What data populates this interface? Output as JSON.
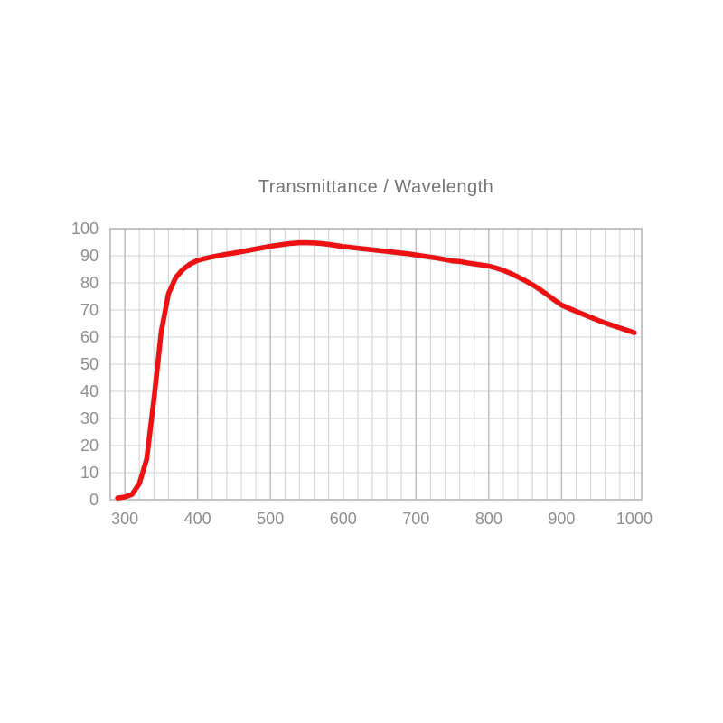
{
  "colors": {
    "background": "#ffffff",
    "line": "#ee1111",
    "line_halo": "#cdeef0",
    "grid_minor": "#d9d9d9",
    "grid_major": "#bdbdbd",
    "plot_border": "#b3b3b3",
    "tick_label": "#8f8f8f",
    "title_text": "#757575"
  },
  "chart_data": {
    "type": "line",
    "title": "Transmittance / Wavelength",
    "xlabel": "",
    "ylabel": "",
    "xlim": [
      280,
      1010
    ],
    "ylim": [
      0,
      100
    ],
    "x_ticks": [
      300,
      400,
      500,
      600,
      700,
      800,
      900,
      1000
    ],
    "y_ticks": [
      0,
      10,
      20,
      30,
      40,
      50,
      60,
      70,
      80,
      90,
      100
    ],
    "x_minor_step": 20,
    "y_major_step": 10,
    "grid": true,
    "legend": false,
    "series": [
      {
        "name": "Transmittance",
        "color": "#ee1111",
        "x": [
          290,
          300,
          310,
          320,
          330,
          340,
          350,
          360,
          370,
          380,
          390,
          400,
          410,
          420,
          430,
          440,
          450,
          460,
          470,
          480,
          490,
          500,
          510,
          520,
          530,
          540,
          550,
          560,
          570,
          580,
          590,
          600,
          610,
          620,
          630,
          640,
          650,
          660,
          670,
          680,
          690,
          700,
          710,
          720,
          730,
          740,
          750,
          760,
          770,
          780,
          790,
          800,
          810,
          820,
          830,
          840,
          850,
          860,
          870,
          880,
          890,
          900,
          910,
          920,
          930,
          940,
          950,
          960,
          970,
          980,
          990,
          1000
        ],
        "y": [
          0.6,
          1.0,
          2.0,
          6.0,
          15.0,
          37.0,
          62.0,
          76.0,
          82.0,
          85.0,
          87.0,
          88.3,
          89.0,
          89.6,
          90.1,
          90.6,
          91.0,
          91.5,
          92.0,
          92.5,
          93.0,
          93.5,
          93.9,
          94.3,
          94.6,
          94.8,
          94.8,
          94.7,
          94.5,
          94.2,
          93.8,
          93.4,
          93.1,
          92.8,
          92.5,
          92.2,
          91.9,
          91.6,
          91.3,
          91.0,
          90.7,
          90.3,
          89.9,
          89.5,
          89.1,
          88.6,
          88.1,
          87.9,
          87.4,
          87.0,
          86.6,
          86.2,
          85.5,
          84.6,
          83.5,
          82.2,
          80.8,
          79.3,
          77.6,
          75.7,
          73.7,
          71.8,
          70.6,
          69.5,
          68.4,
          67.3,
          66.2,
          65.2,
          64.3,
          63.4,
          62.5,
          61.6
        ]
      }
    ]
  }
}
